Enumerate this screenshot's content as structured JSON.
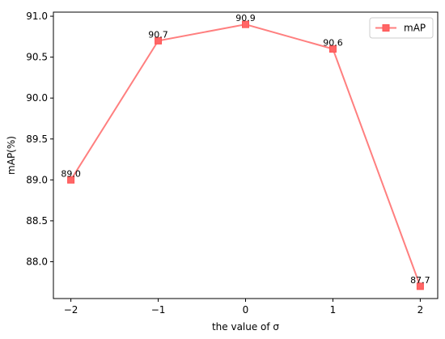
{
  "chart_data": {
    "type": "line",
    "x": [
      -2,
      -1,
      0,
      1,
      2
    ],
    "series": [
      {
        "name": "mAP",
        "values": [
          89.0,
          90.7,
          90.9,
          90.6,
          87.7
        ],
        "color": "#ff7f7f",
        "marker": "square"
      }
    ],
    "data_labels": [
      "89.0",
      "90.7",
      "90.9",
      "90.6",
      "87.7"
    ],
    "xlabel": "the value of σ",
    "ylabel": "mAP(%)",
    "xlim": [
      -2.2,
      2.2
    ],
    "ylim": [
      87.55,
      91.05
    ],
    "xticks": [
      -2,
      -1,
      0,
      1,
      2
    ],
    "xtick_labels": [
      "−2",
      "−1",
      "0",
      "1",
      "2"
    ],
    "yticks": [
      88.0,
      88.5,
      89.0,
      89.5,
      90.0,
      90.5,
      91.0
    ],
    "ytick_labels": [
      "88.0",
      "88.5",
      "89.0",
      "89.5",
      "90.0",
      "90.5",
      "91.0"
    ],
    "grid": false,
    "legend_position": "top-right"
  }
}
